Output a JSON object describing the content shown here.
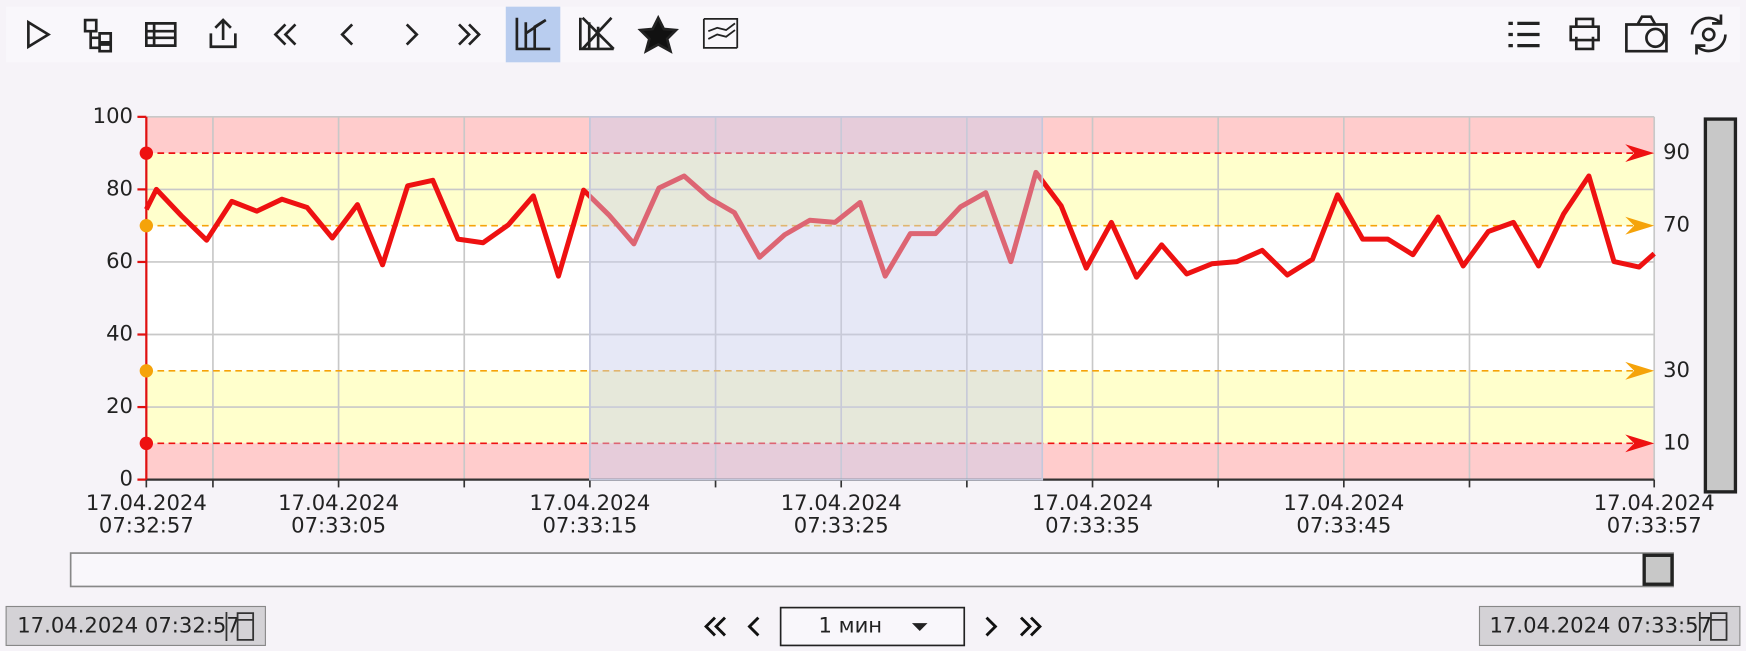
{
  "chart_data": {
    "type": "line",
    "x": [
      0,
      0.4,
      1.4,
      2.4,
      3.4,
      4.4,
      5.4,
      6.4,
      7.4,
      8.4,
      9.4,
      10.4,
      11.4,
      12.4,
      13.4,
      14.4,
      15.4,
      16.4,
      17.4,
      18.4,
      19.4,
      20.4,
      21.4,
      22.4,
      23.4,
      24.4,
      25.4,
      26.4,
      27.4,
      28.4,
      29.4,
      30.4,
      31.4,
      32.4,
      33.4,
      34.4,
      35.4,
      36.4,
      37.4,
      38.4,
      39.4,
      40.4,
      41.4,
      42.4,
      43.4,
      44.4,
      45.4,
      46.4,
      47.4,
      48.4,
      49.4,
      50.4,
      51.4,
      52.4,
      53.4,
      54.4,
      55.4,
      56.4,
      57.4,
      58.4,
      59.4,
      60
    ],
    "series": [
      {
        "color": "#ee1111",
        "values": [
          74.5,
          80,
          72.7,
          66,
          76.7,
          74,
          77.3,
          75,
          66.6,
          75.8,
          59.2,
          81,
          82.5,
          66.3,
          65.3,
          70.2,
          78.2,
          56.1,
          79.8,
          73,
          65,
          80.4,
          83.7,
          77.6,
          73.6,
          61.3,
          67.5,
          71.5,
          70.9,
          76.4,
          56.1,
          67.8,
          67.8,
          75.2,
          79.1,
          60.1,
          84.7,
          75.5,
          58.3,
          70.9,
          55.8,
          64.7,
          56.7,
          59.5,
          60.1,
          63.2,
          56.4,
          60.7,
          78.5,
          66.3,
          66.3,
          62,
          72.4,
          58.9,
          68.4,
          70.9,
          58.9,
          73.3,
          83.7,
          60.1,
          58.6,
          62.3
        ]
      }
    ],
    "xlim": [
      0,
      60
    ],
    "xticks": [
      {
        "value": 0,
        "label": "17.04.2024 07:32:57"
      },
      {
        "value": 7.65,
        "label": "17.04.2024 07:33:05"
      },
      {
        "value": 17.65,
        "label": "17.04.2024 07:33:15"
      },
      {
        "value": 27.65,
        "label": "17.04.2024 07:33:25"
      },
      {
        "value": 37.65,
        "label": "17.04.2024 07:33:35"
      },
      {
        "value": 47.65,
        "label": "17.04.2024 07:33:45"
      },
      {
        "value": 60,
        "label": "17.04.2024 07:33:57"
      }
    ],
    "xminor": [
      2.65,
      12.65,
      22.65,
      32.65,
      42.65,
      52.65
    ],
    "ylim": [
      0,
      100
    ],
    "yticks": [
      0,
      20,
      40,
      60,
      80,
      100
    ],
    "ytick_color": "#e01010",
    "bands": [
      {
        "range": [
          90,
          100
        ],
        "color": "#ffcccc"
      },
      {
        "range": [
          70,
          90
        ],
        "color": "#ffffcc"
      },
      {
        "range": [
          30,
          70
        ],
        "color": "#ffffff"
      },
      {
        "range": [
          10,
          30
        ],
        "color": "#ffffcc"
      },
      {
        "range": [
          0,
          10
        ],
        "color": "#ffcccc"
      }
    ],
    "thresholds": [
      {
        "value": 90,
        "color": "#ee1111"
      },
      {
        "value": 70,
        "color": "#f5a30a"
      },
      {
        "value": 30,
        "color": "#f5a30a"
      },
      {
        "value": 10,
        "color": "#ee1111"
      }
    ],
    "selection": [
      17.65,
      35.65
    ],
    "grid": true
  },
  "footer": {
    "start": "17.04.2024 07:32:57",
    "period": "1 мин",
    "end": "17.04.2024 07:33:57"
  }
}
